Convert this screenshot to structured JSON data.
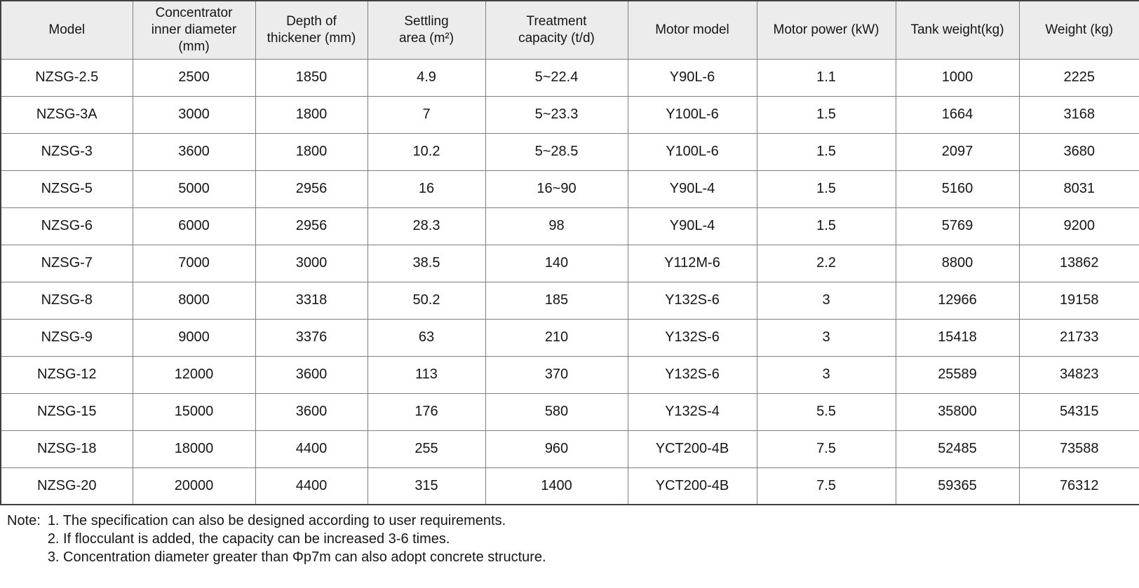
{
  "table": {
    "columns": [
      "Model",
      "Concentrator\ninner diameter\n(mm)",
      "Depth of\nthickener (mm)",
      "Settling\narea (m²)",
      "Treatment\ncapacity (t/d)",
      "Motor model",
      "Motor power (kW)",
      "Tank weight(kg)",
      "Weight (kg)"
    ],
    "rows": [
      [
        "NZSG-2.5",
        "2500",
        "1850",
        "4.9",
        "5~22.4",
        "Y90L-6",
        "1.1",
        "1000",
        "2225"
      ],
      [
        "NZSG-3A",
        "3000",
        "1800",
        "7",
        "5~23.3",
        "Y100L-6",
        "1.5",
        "1664",
        "3168"
      ],
      [
        "NZSG-3",
        "3600",
        "1800",
        "10.2",
        "5~28.5",
        "Y100L-6",
        "1.5",
        "2097",
        "3680"
      ],
      [
        "NZSG-5",
        "5000",
        "2956",
        "16",
        "16~90",
        "Y90L-4",
        "1.5",
        "5160",
        "8031"
      ],
      [
        "NZSG-6",
        "6000",
        "2956",
        "28.3",
        "98",
        "Y90L-4",
        "1.5",
        "5769",
        "9200"
      ],
      [
        "NZSG-7",
        "7000",
        "3000",
        "38.5",
        "140",
        "Y112M-6",
        "2.2",
        "8800",
        "13862"
      ],
      [
        "NZSG-8",
        "8000",
        "3318",
        "50.2",
        "185",
        "Y132S-6",
        "3",
        "12966",
        "19158"
      ],
      [
        "NZSG-9",
        "9000",
        "3376",
        "63",
        "210",
        "Y132S-6",
        "3",
        "15418",
        "21733"
      ],
      [
        "NZSG-12",
        "12000",
        "3600",
        "113",
        "370",
        "Y132S-6",
        "3",
        "25589",
        "34823"
      ],
      [
        "NZSG-15",
        "15000",
        "3600",
        "176",
        "580",
        "Y132S-4",
        "5.5",
        "35800",
        "54315"
      ],
      [
        "NZSG-18",
        "18000",
        "4400",
        "255",
        "960",
        "YCT200-4B",
        "7.5",
        "52485",
        "73588"
      ],
      [
        "NZSG-20",
        "20000",
        "4400",
        "315",
        "1400",
        "YCT200-4B",
        "7.5",
        "59365",
        "76312"
      ]
    ]
  },
  "notes": {
    "label": "Note:",
    "items": [
      "1. The specification can also be designed according to user requirements.",
      "2. If flocculant is added, the capacity can be increased 3-6 times.",
      "3. Concentration diameter greater than Φp7m can also adopt concrete structure."
    ]
  },
  "colors": {
    "header_background": "#ececec",
    "inner_border": "#7f7f7f",
    "outer_border": "#404040",
    "text": "#161616",
    "cell_background": "#ffffff"
  }
}
